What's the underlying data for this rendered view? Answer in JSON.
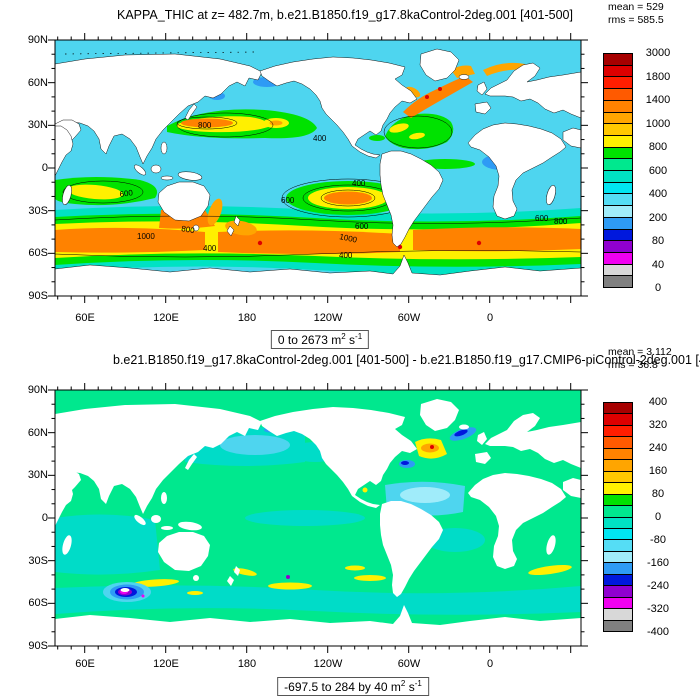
{
  "colors": {
    "ocean_top": "#4ed5ef",
    "ocean_bottom": "#00e88e",
    "frame": "#000000"
  },
  "palette": [
    "#a60000",
    "#dd0000",
    "#ff1e00",
    "#ff5a00",
    "#ff8200",
    "#ffa500",
    "#ffc800",
    "#fff000",
    "#00e200",
    "#00e88e",
    "#00e2c4",
    "#00e6f2",
    "#55ddf5",
    "#a0ecfa",
    "#2e9bf5",
    "#0018dd",
    "#9000d0",
    "#f000f0",
    "#d8d8d8",
    "#808080"
  ],
  "axes": {
    "x_ticks": [
      "60E",
      "120E",
      "180",
      "120W",
      "60W",
      "0"
    ],
    "y_ticks": [
      "90N",
      "60N",
      "30N",
      "0",
      "30S",
      "60S",
      "90S"
    ]
  },
  "top_plot": {
    "title": "KAPPA_THIC at z= 482.7m, b.e21.B1850.f19_g17.8kaControl-2deg.001 [401-500]",
    "mean_label": "mean = 529",
    "rms_label": "rms = 585.5",
    "range": {
      "pre": "0 to 2673 m",
      "sup1": "2",
      "mid": " s",
      "sup2": "-1"
    },
    "colorbar_labels": [
      "3000",
      "1800",
      "1400",
      "1000",
      "800",
      "600",
      "400",
      "200",
      "80",
      "40",
      "0"
    ],
    "contour_labels": [
      "800",
      "400",
      "400",
      "600",
      "1000",
      "800",
      "400",
      "600",
      "600",
      "1000",
      "400",
      "600",
      "800"
    ]
  },
  "bottom_plot": {
    "title": "b.e21.B1850.f19_g17.8kaControl-2deg.001 [401-500] - b.e21.B1850.f19_g17.CMIP6-piControl-2deg.001 [401-",
    "mean_label": "mean = 3.112",
    "rms_label": "rms = 36.8",
    "range": {
      "pre": "-697.5 to 284 by 40 m",
      "sup1": "2",
      "mid": " s",
      "sup2": "-1"
    },
    "colorbar_labels": [
      "400",
      "320",
      "240",
      "160",
      "80",
      "0",
      "-80",
      "-160",
      "-240",
      "-320",
      "-400"
    ]
  },
  "chart_data": [
    {
      "type": "heatmap",
      "title": "KAPPA_THIC at z= 482.7m, b.e21.B1850.f19_g17.8kaControl-2deg.001 [401-500]",
      "variable": "KAPPA_THIC",
      "depth_m": 482.7,
      "mean": 529,
      "rms": 585.5,
      "data_range": [
        0,
        2673
      ],
      "units": "m2 s-1",
      "colorbar_ticks": [
        3000,
        1800,
        1400,
        1000,
        800,
        600,
        400,
        200,
        80,
        40,
        0
      ],
      "x_tick_labels": [
        "60E",
        "120E",
        "180",
        "120W",
        "60W",
        "0"
      ],
      "y_tick_labels": [
        "90N",
        "60N",
        "30N",
        "0",
        "30S",
        "60S",
        "90S"
      ],
      "legend_position": "right",
      "notes": "filled lat-lon contour map; high values (orange/red 800-1800) in Southern Ocean 40S-60S band, Kuroshio extension and North Atlantic current; background ocean ~200-400 (cyan); land white"
    },
    {
      "type": "heatmap",
      "title": "b.e21.B1850.f19_g17.8kaControl-2deg.001 [401-500] - b.e21.B1850.f19_g17.CMIP6-piControl-2deg.001 [401-500]",
      "mean": 3.112,
      "rms": 36.8,
      "data_range": [
        -697.5,
        284
      ],
      "contour_interval": 40,
      "units": "m2 s-1",
      "colorbar_ticks": [
        400,
        320,
        240,
        160,
        80,
        0,
        -80,
        -160,
        -240,
        -320,
        -400
      ],
      "x_tick_labels": [
        "60E",
        "120E",
        "180",
        "120W",
        "60W",
        "0"
      ],
      "y_tick_labels": [
        "90N",
        "60N",
        "30N",
        "0",
        "30S",
        "60S",
        "90S"
      ],
      "legend_position": "right",
      "notes": "difference map mostly near zero (green/turquoise); strong negative (blue/purple/magenta) spot near Kerguelen ~70E,52S; positive (yellow/orange/red) patch south of Greenland"
    }
  ]
}
